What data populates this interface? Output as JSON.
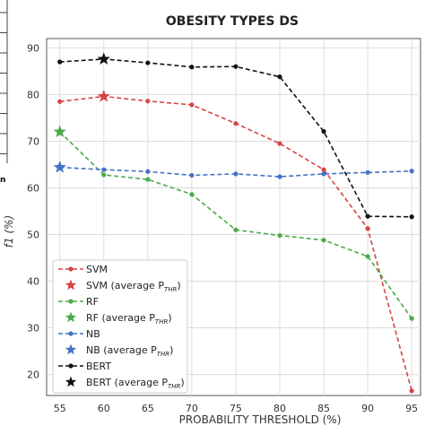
{
  "chart_data": {
    "type": "line",
    "title": "OBESITY TYPES DS",
    "xlabel": "PROBABILITY THRESHOLD (%)",
    "ylabel": "f1 (%)",
    "x": [
      55,
      60,
      65,
      70,
      75,
      80,
      85,
      90,
      95
    ],
    "xlim": [
      53.5,
      96
    ],
    "ylim": [
      15.5,
      92
    ],
    "yticks": [
      20,
      30,
      40,
      50,
      60,
      70,
      80,
      90
    ],
    "grid": true,
    "legend_position": "lower-left",
    "series": [
      {
        "name": "SVM",
        "color": "#d64545",
        "values": [
          78.5,
          79.6,
          78.6,
          77.8,
          73.8,
          69.5,
          63.9,
          51.3,
          16.5
        ],
        "star": {
          "x": 60,
          "value": 79.6
        },
        "star_label": "SVM (average P",
        "star_sub": "THR",
        "star_suffix": ")"
      },
      {
        "name": "RF",
        "color": "#4caa4c",
        "values": [
          72.0,
          62.8,
          61.8,
          58.6,
          51.0,
          49.8,
          48.8,
          45.3,
          32.0
        ],
        "star": {
          "x": 55,
          "value": 72.0
        },
        "star_label": "RF (average P",
        "star_sub": "THR",
        "star_suffix": ")"
      },
      {
        "name": "NB",
        "color": "#4472c4",
        "values": [
          64.4,
          63.9,
          63.5,
          62.7,
          63.0,
          62.4,
          63.0,
          63.3,
          63.6
        ],
        "star": {
          "x": 55,
          "value": 64.4
        },
        "star_label": "NB (average P",
        "star_sub": "THR",
        "star_suffix": ")"
      },
      {
        "name": "BERT",
        "color": "#111111",
        "values": [
          87.0,
          87.6,
          86.8,
          85.9,
          86.0,
          83.8,
          72.1,
          53.9,
          53.8
        ],
        "star": {
          "x": 60,
          "value": 87.6
        },
        "star_label": "BERT (average P",
        "star_sub": "THR",
        "star_suffix": ")"
      }
    ]
  },
  "left_fragment": "n"
}
